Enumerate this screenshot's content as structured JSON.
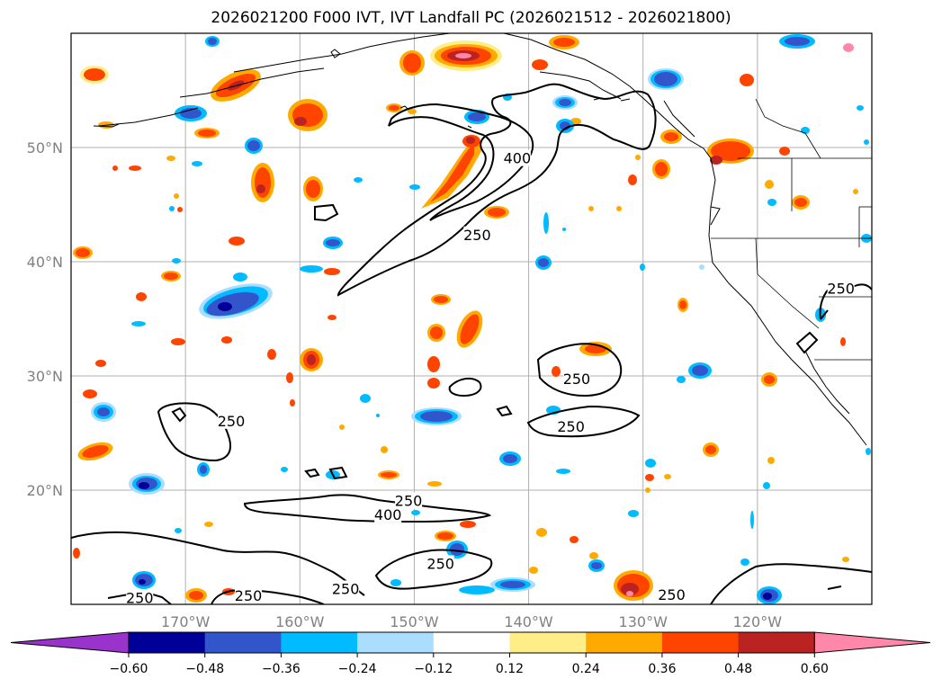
{
  "title": "2026021200 F000 IVT, IVT Landfall PC (2026021512 - 2026021800)",
  "map": {
    "lon_range": [
      -180,
      -110
    ],
    "lat_range": [
      10,
      60
    ],
    "lon_ticks": [
      {
        "value": -170,
        "label": "170°W"
      },
      {
        "value": -160,
        "label": "160°W"
      },
      {
        "value": -150,
        "label": "150°W"
      },
      {
        "value": -140,
        "label": "140°W"
      },
      {
        "value": -130,
        "label": "130°W"
      },
      {
        "value": -120,
        "label": "120°W"
      }
    ],
    "lat_ticks": [
      {
        "value": 20,
        "label": "20°N"
      },
      {
        "value": 30,
        "label": "30°N"
      },
      {
        "value": 40,
        "label": "40°N"
      },
      {
        "value": 50,
        "label": "50°N"
      }
    ],
    "grid": true,
    "contour_labels": [
      {
        "text": "250",
        "lon": -166,
        "lat": 26
      },
      {
        "text": "250",
        "lon": -150.5,
        "lat": 19
      },
      {
        "text": "400",
        "lon": -152.3,
        "lat": 17.8
      },
      {
        "text": "250",
        "lon": -147.7,
        "lat": 13.5
      },
      {
        "text": "250",
        "lon": -156,
        "lat": 11.3
      },
      {
        "text": "250",
        "lon": -174,
        "lat": 10.5
      },
      {
        "text": "250",
        "lon": -164.5,
        "lat": 10.7
      },
      {
        "text": "250",
        "lon": -135.8,
        "lat": 29.7
      },
      {
        "text": "250",
        "lon": -136.3,
        "lat": 25.5
      },
      {
        "text": "250",
        "lon": -144.5,
        "lat": 42.3
      },
      {
        "text": "400",
        "lon": -141,
        "lat": 49
      },
      {
        "text": "250",
        "lon": -127.5,
        "lat": 10.8
      },
      {
        "text": "250",
        "lon": -112.7,
        "lat": 37.6
      }
    ]
  },
  "colorbar": {
    "colors": [
      "#9933cc",
      "#000099",
      "#3355cc",
      "#00bbff",
      "#aaddff",
      "#ffffff",
      "#ffee88",
      "#ffaa00",
      "#ff4400",
      "#bb2222",
      "#ff88aa"
    ],
    "tick_labels": [
      "−0.60",
      "−0.48",
      "−0.36",
      "−0.24",
      "−0.12",
      "0.12",
      "0.24",
      "0.36",
      "0.48",
      "0.60"
    ]
  }
}
